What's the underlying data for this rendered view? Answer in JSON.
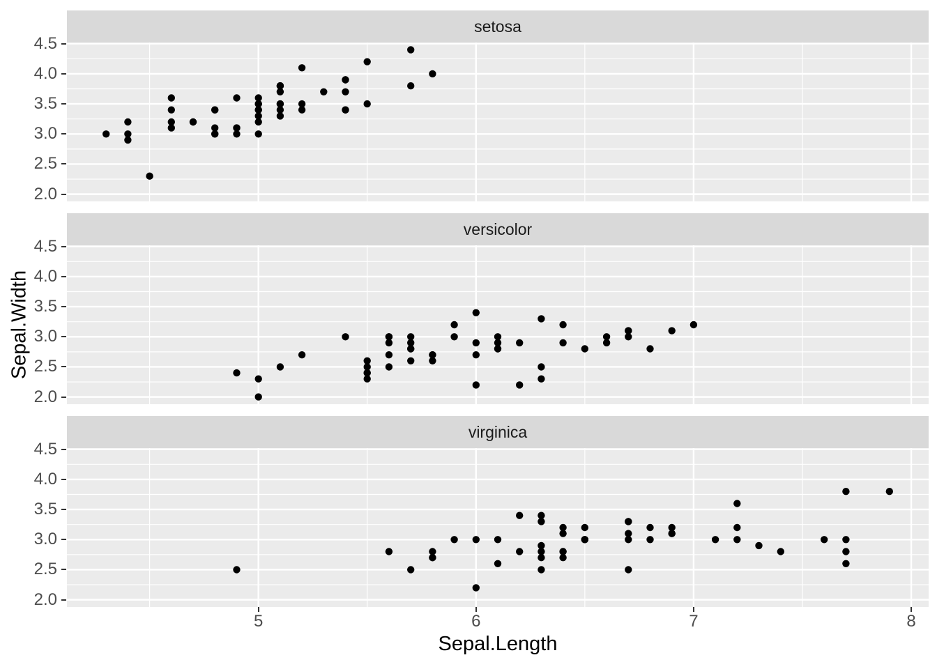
{
  "chart_data": {
    "type": "scatter",
    "xlabel": "Sepal.Length",
    "ylabel": "Sepal.Width",
    "facet_layout": "rows",
    "legend_position": "none",
    "grid": "major+minor",
    "point_shape": "circle",
    "xlim": [
      4.12,
      8.08
    ],
    "ylim": [
      1.88,
      4.52
    ],
    "x_tick_values": [
      5,
      6,
      7,
      8
    ],
    "x_tick_labels": [
      "5",
      "6",
      "7",
      "8"
    ],
    "y_tick_values": [
      2.0,
      2.5,
      3.0,
      3.5,
      4.0,
      4.5
    ],
    "y_tick_labels": [
      "2.0",
      "2.5",
      "3.0",
      "3.5",
      "4.0",
      "4.5"
    ],
    "x_minor_ticks": [
      4.5,
      5.5,
      6.5,
      7.5
    ],
    "y_minor_ticks": [
      2.25,
      2.75,
      3.25,
      3.75,
      4.25
    ],
    "facets": [
      {
        "label": "setosa",
        "points": [
          [
            5.1,
            3.5
          ],
          [
            4.9,
            3.0
          ],
          [
            4.7,
            3.2
          ],
          [
            4.6,
            3.1
          ],
          [
            5.0,
            3.6
          ],
          [
            5.4,
            3.9
          ],
          [
            4.6,
            3.4
          ],
          [
            5.0,
            3.4
          ],
          [
            4.4,
            2.9
          ],
          [
            4.9,
            3.1
          ],
          [
            5.4,
            3.7
          ],
          [
            4.8,
            3.4
          ],
          [
            4.8,
            3.0
          ],
          [
            4.3,
            3.0
          ],
          [
            5.8,
            4.0
          ],
          [
            5.7,
            4.4
          ],
          [
            5.4,
            3.9
          ],
          [
            5.1,
            3.5
          ],
          [
            5.7,
            3.8
          ],
          [
            5.1,
            3.8
          ],
          [
            5.4,
            3.4
          ],
          [
            5.1,
            3.7
          ],
          [
            4.6,
            3.6
          ],
          [
            5.1,
            3.3
          ],
          [
            4.8,
            3.4
          ],
          [
            5.0,
            3.0
          ],
          [
            5.0,
            3.4
          ],
          [
            5.2,
            3.5
          ],
          [
            5.2,
            3.4
          ],
          [
            4.7,
            3.2
          ],
          [
            4.8,
            3.1
          ],
          [
            5.4,
            3.4
          ],
          [
            5.2,
            4.1
          ],
          [
            5.5,
            4.2
          ],
          [
            4.9,
            3.1
          ],
          [
            5.0,
            3.2
          ],
          [
            5.5,
            3.5
          ],
          [
            4.9,
            3.6
          ],
          [
            4.4,
            3.0
          ],
          [
            5.1,
            3.4
          ],
          [
            5.0,
            3.5
          ],
          [
            4.5,
            2.3
          ],
          [
            4.4,
            3.2
          ],
          [
            5.0,
            3.5
          ],
          [
            5.1,
            3.8
          ],
          [
            4.8,
            3.0
          ],
          [
            5.1,
            3.8
          ],
          [
            4.6,
            3.2
          ],
          [
            5.3,
            3.7
          ],
          [
            5.0,
            3.3
          ]
        ]
      },
      {
        "label": "versicolor",
        "points": [
          [
            7.0,
            3.2
          ],
          [
            6.4,
            3.2
          ],
          [
            6.9,
            3.1
          ],
          [
            5.5,
            2.3
          ],
          [
            6.5,
            2.8
          ],
          [
            5.7,
            2.8
          ],
          [
            6.3,
            3.3
          ],
          [
            4.9,
            2.4
          ],
          [
            6.6,
            2.9
          ],
          [
            5.2,
            2.7
          ],
          [
            5.0,
            2.0
          ],
          [
            5.9,
            3.0
          ],
          [
            6.0,
            2.2
          ],
          [
            6.1,
            2.9
          ],
          [
            5.6,
            2.9
          ],
          [
            6.7,
            3.1
          ],
          [
            5.6,
            3.0
          ],
          [
            5.8,
            2.7
          ],
          [
            6.2,
            2.2
          ],
          [
            5.6,
            2.5
          ],
          [
            5.9,
            3.2
          ],
          [
            6.1,
            2.8
          ],
          [
            6.3,
            2.5
          ],
          [
            6.1,
            2.8
          ],
          [
            6.4,
            2.9
          ],
          [
            6.6,
            3.0
          ],
          [
            6.8,
            2.8
          ],
          [
            6.7,
            3.0
          ],
          [
            6.0,
            2.9
          ],
          [
            5.7,
            2.6
          ],
          [
            5.5,
            2.4
          ],
          [
            5.5,
            2.4
          ],
          [
            5.8,
            2.7
          ],
          [
            6.0,
            2.7
          ],
          [
            5.4,
            3.0
          ],
          [
            6.0,
            3.4
          ],
          [
            6.7,
            3.1
          ],
          [
            6.3,
            2.3
          ],
          [
            5.6,
            3.0
          ],
          [
            5.5,
            2.5
          ],
          [
            5.5,
            2.6
          ],
          [
            6.1,
            3.0
          ],
          [
            5.8,
            2.6
          ],
          [
            5.0,
            2.3
          ],
          [
            5.6,
            2.7
          ],
          [
            5.7,
            3.0
          ],
          [
            5.7,
            2.9
          ],
          [
            6.2,
            2.9
          ],
          [
            5.1,
            2.5
          ],
          [
            5.7,
            2.8
          ]
        ]
      },
      {
        "label": "virginica",
        "points": [
          [
            6.3,
            3.3
          ],
          [
            5.8,
            2.7
          ],
          [
            7.1,
            3.0
          ],
          [
            6.3,
            2.9
          ],
          [
            6.5,
            3.0
          ],
          [
            7.6,
            3.0
          ],
          [
            4.9,
            2.5
          ],
          [
            7.3,
            2.9
          ],
          [
            6.7,
            2.5
          ],
          [
            7.2,
            3.6
          ],
          [
            6.5,
            3.2
          ],
          [
            6.4,
            2.7
          ],
          [
            6.8,
            3.0
          ],
          [
            5.7,
            2.5
          ],
          [
            5.8,
            2.8
          ],
          [
            6.4,
            3.2
          ],
          [
            6.5,
            3.0
          ],
          [
            7.7,
            3.8
          ],
          [
            7.7,
            2.6
          ],
          [
            6.0,
            2.2
          ],
          [
            6.9,
            3.2
          ],
          [
            5.6,
            2.8
          ],
          [
            7.7,
            2.8
          ],
          [
            6.3,
            2.7
          ],
          [
            6.7,
            3.3
          ],
          [
            7.2,
            3.2
          ],
          [
            6.2,
            2.8
          ],
          [
            6.1,
            3.0
          ],
          [
            6.4,
            2.8
          ],
          [
            7.2,
            3.0
          ],
          [
            7.4,
            2.8
          ],
          [
            7.9,
            3.8
          ],
          [
            6.4,
            2.8
          ],
          [
            6.3,
            2.8
          ],
          [
            6.1,
            2.6
          ],
          [
            7.7,
            3.0
          ],
          [
            6.3,
            3.4
          ],
          [
            6.4,
            3.1
          ],
          [
            6.0,
            3.0
          ],
          [
            6.9,
            3.1
          ],
          [
            6.7,
            3.1
          ],
          [
            6.9,
            3.1
          ],
          [
            5.8,
            2.7
          ],
          [
            6.8,
            3.2
          ],
          [
            6.7,
            3.3
          ],
          [
            6.7,
            3.0
          ],
          [
            6.3,
            2.5
          ],
          [
            6.5,
            3.0
          ],
          [
            6.2,
            3.4
          ],
          [
            5.9,
            3.0
          ]
        ]
      }
    ],
    "style": {
      "page_bg": "#FFFFFF",
      "panel_bg": "#EBEBEB",
      "strip_bg": "#D9D9D9",
      "strip_text_color": "#1A1A1A",
      "grid_color": "#FFFFFF",
      "point_color": "#000000",
      "axis_text_color": "#4D4D4D",
      "axis_title_color": "#000000",
      "tick_mark_color": "#333333"
    }
  }
}
